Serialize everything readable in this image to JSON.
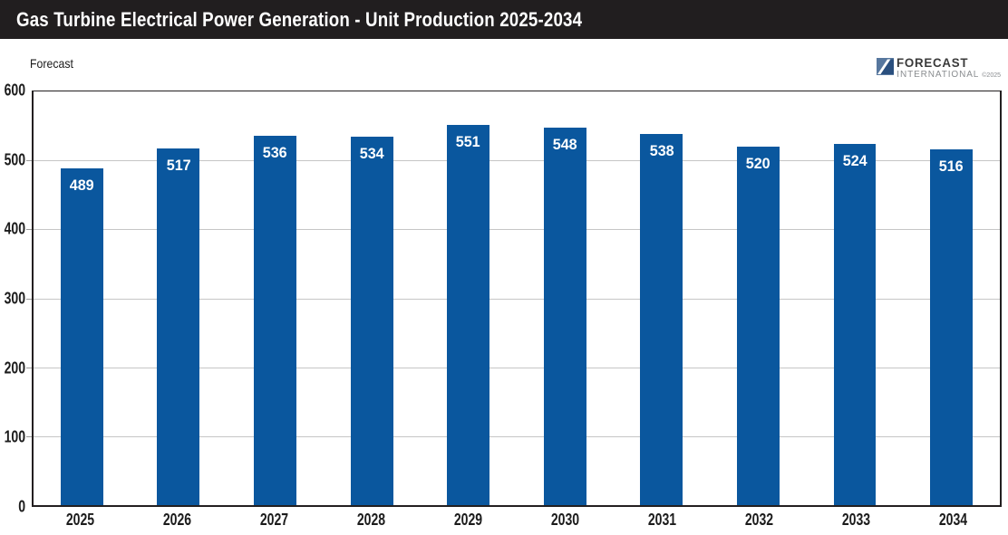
{
  "header": {
    "title": "Gas Turbine Electrical Power Generation - Unit Production 2025-2034"
  },
  "forecast_label": "Forecast",
  "logo": {
    "line1": "FORECAST",
    "line2": "INTERNATIONAL",
    "copyright": "©2025"
  },
  "colors": {
    "bar": "#0a579e",
    "header_bg": "#211e1f",
    "grid": "#c6c6c6",
    "axis": "#231f20",
    "bar_label_text": "#ffffff"
  },
  "chart_data": {
    "type": "bar",
    "title": "Gas Turbine Electrical Power Generation - Unit Production 2025-2034",
    "subtitle": "Forecast",
    "categories": [
      "2025",
      "2026",
      "2027",
      "2028",
      "2029",
      "2030",
      "2031",
      "2032",
      "2033",
      "2034"
    ],
    "values": [
      489,
      517,
      536,
      534,
      551,
      548,
      538,
      520,
      524,
      516
    ],
    "xlabel": "",
    "ylabel": "",
    "ylim": [
      0,
      600
    ],
    "yticks": [
      0,
      100,
      200,
      300,
      400,
      500,
      600
    ],
    "grid": true,
    "bar_value_labels": true,
    "legend": false
  }
}
